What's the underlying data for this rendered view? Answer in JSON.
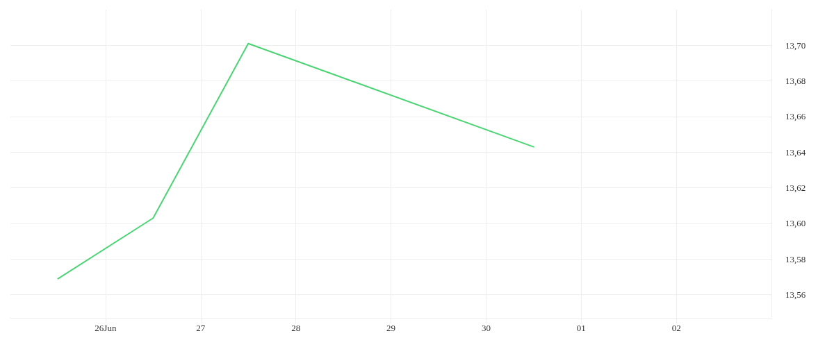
{
  "chart_data": {
    "type": "line",
    "x": [
      "--06-25T12:00",
      "--06-26T12:00",
      "--06-27T12:00",
      "--06-30T12:00"
    ],
    "series": [
      {
        "color": "#4cd474",
        "values": [
          13.569,
          13.603,
          13.701,
          13.643
        ]
      }
    ],
    "xlim": [
      "--06-25",
      "--07-03"
    ],
    "xticks": [
      {
        "value": "--06-26",
        "label": "26Jun"
      },
      {
        "value": "--06-27",
        "label": "27"
      },
      {
        "value": "--06-28",
        "label": "28"
      },
      {
        "value": "--06-29",
        "label": "29"
      },
      {
        "value": "--06-30",
        "label": "30"
      },
      {
        "value": "--07-01",
        "label": "01"
      },
      {
        "value": "--07-02",
        "label": "02"
      }
    ],
    "ylim": [
      13.547,
      13.72
    ],
    "yticks": [
      {
        "value": 13.56,
        "label": "13,56"
      },
      {
        "value": 13.58,
        "label": "13,58"
      },
      {
        "value": 13.6,
        "label": "13,60"
      },
      {
        "value": 13.62,
        "label": "13,62"
      },
      {
        "value": 13.64,
        "label": "13,64"
      },
      {
        "value": 13.66,
        "label": "13,66"
      },
      {
        "value": 13.68,
        "label": "13,68"
      },
      {
        "value": 13.7,
        "label": "13,70"
      }
    ],
    "grid": true,
    "marker": "none",
    "line_style": "solid"
  }
}
